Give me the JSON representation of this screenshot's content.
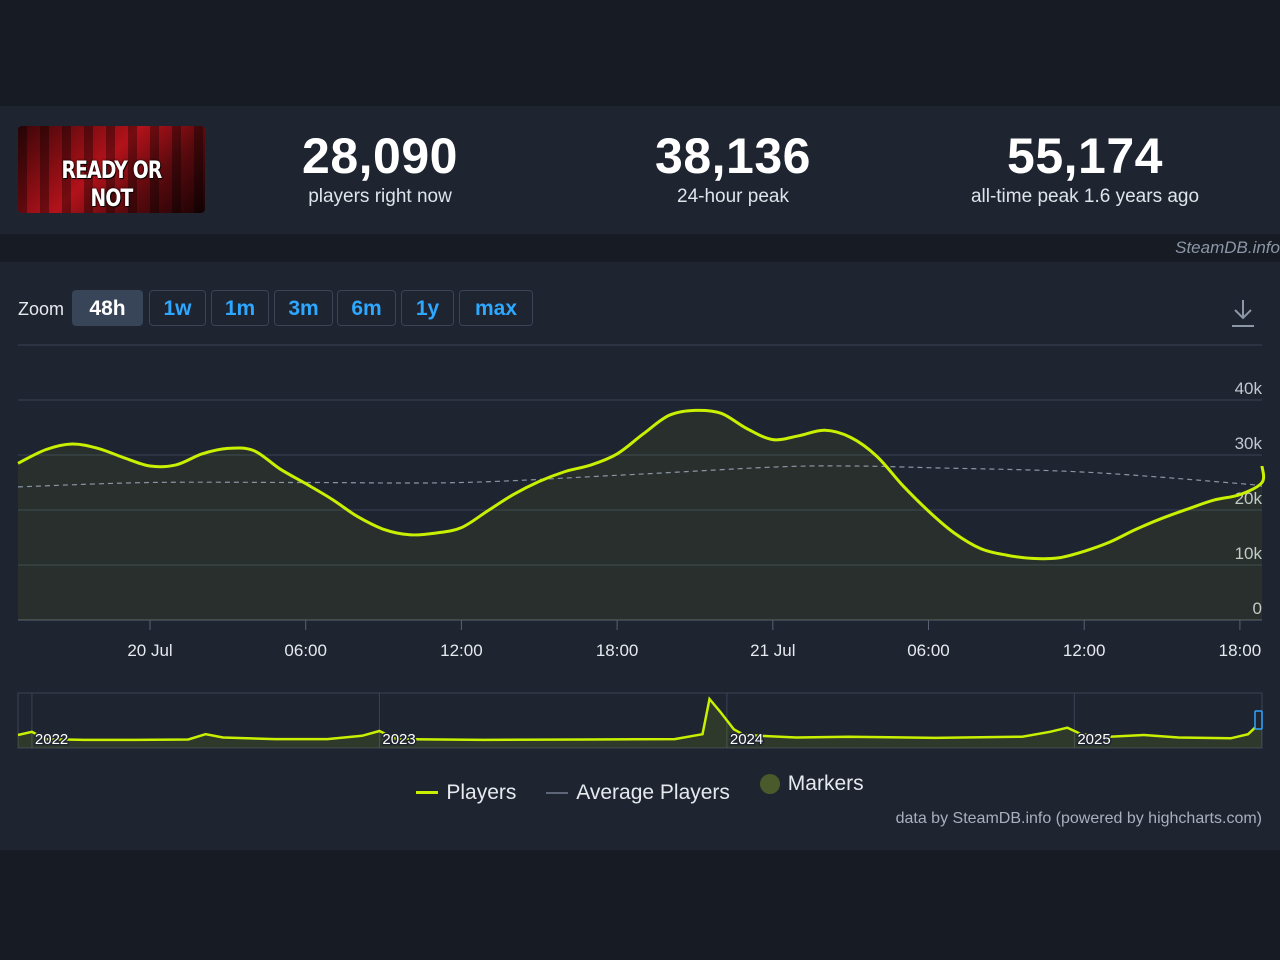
{
  "header": {
    "game_logo_text": "READY OR NOT",
    "stats": [
      {
        "value": "28,090",
        "label": "players right now"
      },
      {
        "value": "38,136",
        "label": "24-hour peak"
      },
      {
        "value": "55,174",
        "label": "all-time peak 1.6 years ago"
      }
    ],
    "watermark": "SteamDB.info"
  },
  "zoom": {
    "label": "Zoom",
    "buttons": [
      "48h",
      "1w",
      "1m",
      "3m",
      "6m",
      "1y",
      "max"
    ],
    "active": "48h"
  },
  "icons": {
    "download": "download-icon"
  },
  "colors": {
    "players": "#c8f000",
    "average": "#8a94a3",
    "markers": "#4a5a2a",
    "active_zoom": "#384558",
    "link": "#2ea7ff"
  },
  "legend": {
    "players": "Players",
    "average": "Average Players",
    "markers": "Markers"
  },
  "credits": "data by SteamDB.info (powered by highcharts.com)",
  "chart_data": [
    {
      "type": "line",
      "title": "",
      "xlabel": "",
      "ylabel": "",
      "x_ticks": [
        "20 Jul",
        "06:00",
        "12:00",
        "18:00",
        "21 Jul",
        "06:00",
        "12:00",
        "18:00"
      ],
      "x_tick_hours": [
        0,
        6,
        12,
        18,
        24,
        30,
        36,
        42
      ],
      "y_ticks": [
        "0",
        "10k",
        "20k",
        "30k",
        "40k"
      ],
      "y_tick_values": [
        0,
        10000,
        20000,
        30000,
        40000
      ],
      "ylim": [
        0,
        40000
      ],
      "grid": true,
      "series": [
        {
          "name": "Players",
          "x_hours": [
            -5.1,
            -4,
            -3,
            -2,
            -1,
            0,
            1,
            2,
            3,
            4,
            5,
            6,
            7,
            8,
            9,
            10,
            11,
            12,
            13,
            14,
            15,
            16,
            17,
            18,
            19,
            20,
            21,
            22,
            23,
            24,
            25,
            26,
            27,
            28,
            29,
            30,
            31,
            32,
            33,
            34,
            35,
            36,
            37,
            38,
            39,
            40,
            41,
            42,
            43,
            43.9
          ],
          "values": [
            28500,
            31000,
            32000,
            31200,
            29500,
            28000,
            28200,
            30200,
            31200,
            30800,
            27500,
            24800,
            22000,
            18800,
            16500,
            15500,
            15800,
            16800,
            19800,
            22800,
            25200,
            27000,
            28200,
            30200,
            33800,
            37200,
            38100,
            37600,
            34800,
            32800,
            33500,
            34500,
            33200,
            29800,
            24500,
            19800,
            15800,
            13000,
            11800,
            11200,
            11300,
            12500,
            14200,
            16500,
            18500,
            20200,
            21800,
            22800,
            25000,
            28000
          ]
        },
        {
          "name": "Average Players",
          "x_hours": [
            -5.1,
            0,
            6,
            12,
            18,
            24,
            27,
            30,
            36,
            42,
            43.9
          ],
          "values": [
            24200,
            25000,
            25000,
            25000,
            26300,
            27800,
            28000,
            27700,
            26900,
            24800,
            24300
          ]
        }
      ]
    },
    {
      "type": "area",
      "title": "",
      "x_ticks": [
        "2022",
        "2023",
        "2024",
        "2025"
      ],
      "x_years": [
        2022,
        2023,
        2024,
        2025
      ],
      "xlim": [
        2021.96,
        2025.54
      ],
      "series": [
        {
          "name": "Players",
          "x": [
            2021.96,
            2022.0,
            2022.04,
            2022.15,
            2022.3,
            2022.45,
            2022.5,
            2022.55,
            2022.7,
            2022.85,
            2022.95,
            2023.0,
            2023.05,
            2023.3,
            2023.6,
            2023.85,
            2023.93,
            2023.95,
            2023.98,
            2024.02,
            2024.05,
            2024.2,
            2024.35,
            2024.6,
            2024.85,
            2024.93,
            2024.98,
            2025.02,
            2025.1,
            2025.2,
            2025.3,
            2025.45,
            2025.5,
            2025.54
          ],
          "values": [
            11000,
            15000,
            6000,
            5000,
            5000,
            5500,
            12000,
            8000,
            6000,
            6000,
            10000,
            16000,
            6000,
            5000,
            5500,
            6000,
            12000,
            55174,
            40000,
            18000,
            11000,
            8000,
            9000,
            7500,
            9000,
            15000,
            20000,
            12000,
            9000,
            11000,
            8000,
            7000,
            12000,
            28090
          ]
        }
      ]
    }
  ]
}
